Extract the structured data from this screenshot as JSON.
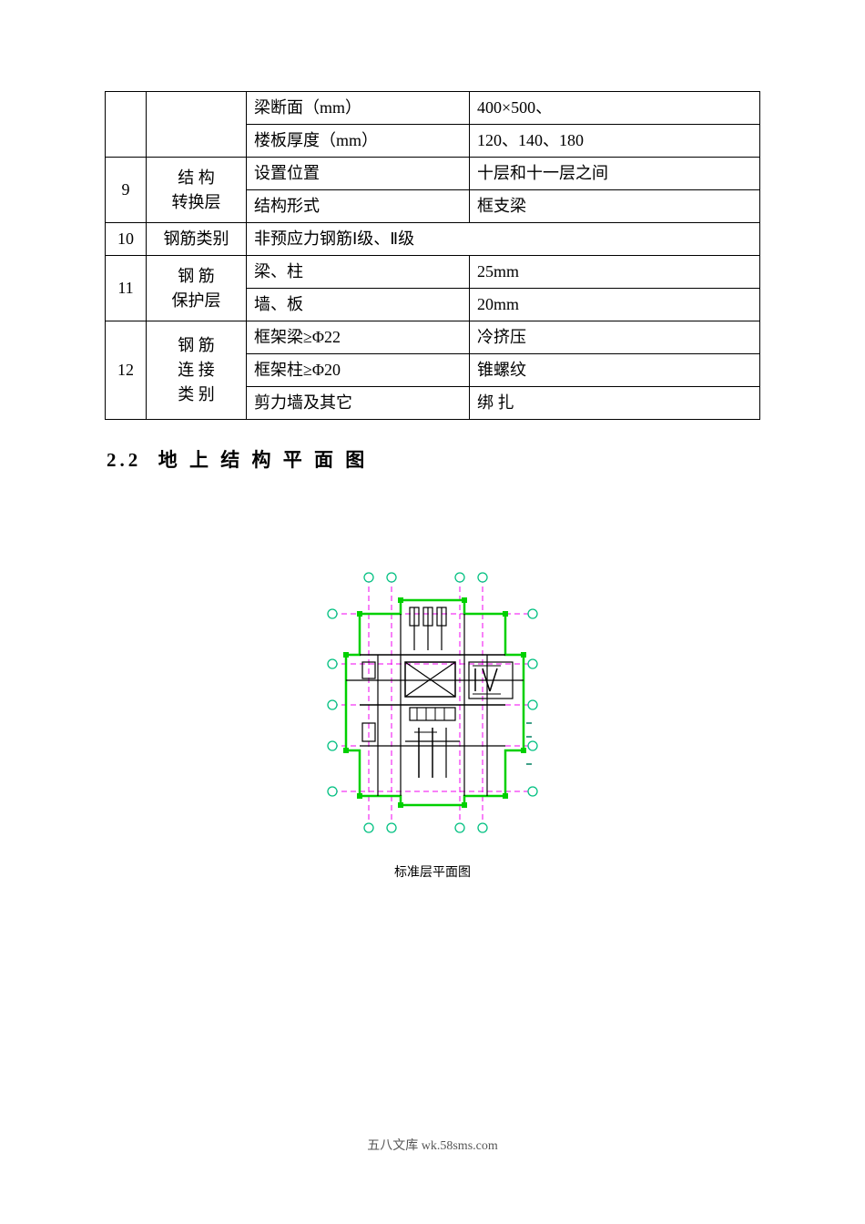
{
  "table": {
    "rows": [
      {
        "num": "",
        "cat": "",
        "label": "梁断面（mm）",
        "val": "400×500、"
      },
      {
        "num": "",
        "cat": "",
        "label": "楼板厚度（mm）",
        "val": "120、140、180"
      },
      {
        "num": "9",
        "cat": "结 构\n转换层",
        "label": "设置位置",
        "val": "十层和十一层之间"
      },
      {
        "num": "",
        "cat": "",
        "label": "结构形式",
        "val": "框支梁"
      },
      {
        "num": "10",
        "cat": "钢筋类别",
        "label_colspan": "非预应力钢筋Ⅰ级、Ⅱ级",
        "val": ""
      },
      {
        "num": "11",
        "cat": "钢 筋\n保护层",
        "label": "梁、柱",
        "val": "25mm"
      },
      {
        "num": "",
        "cat": "",
        "label": "墙、板",
        "val": "20mm"
      },
      {
        "num": "12",
        "cat": "钢 筋\n连 接\n类 别",
        "label": "框架梁≥Φ22",
        "val": "冷挤压"
      },
      {
        "num": "",
        "cat": "",
        "label": "框架柱≥Φ20",
        "val": "锥螺纹"
      },
      {
        "num": "",
        "cat": "",
        "label": "剪力墙及其它",
        "val": "绑  扎"
      }
    ]
  },
  "heading": {
    "number": "2.2",
    "title": "地 上 结 构 平 面 图"
  },
  "diagram": {
    "caption": "标准层平面图",
    "colors": {
      "dashed": "#f000f0",
      "wall": "#00d000",
      "structure": "#000000",
      "point_outer": "#00c080",
      "point_inner": "#ffffff",
      "tick": "#008060"
    }
  },
  "footer": "五八文库 wk.58sms.com"
}
